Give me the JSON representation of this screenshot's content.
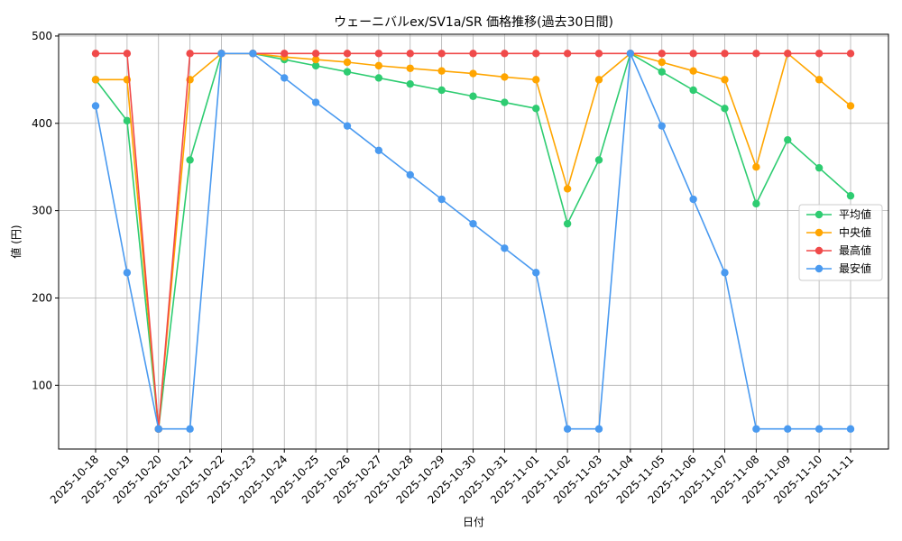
{
  "chart_data": {
    "type": "line",
    "title": "ウェーニバルex/SV1a/SR 価格推移(過去30日間)",
    "xlabel": "日付",
    "ylabel": "値 (円)",
    "categories": [
      "2025-10-18",
      "2025-10-19",
      "2025-10-20",
      "2025-10-21",
      "2025-10-22",
      "2025-10-23",
      "2025-10-24",
      "2025-10-25",
      "2025-10-26",
      "2025-10-27",
      "2025-10-28",
      "2025-10-29",
      "2025-10-30",
      "2025-10-31",
      "2025-11-01",
      "2025-11-02",
      "2025-11-03",
      "2025-11-04",
      "2025-11-05",
      "2025-11-06",
      "2025-11-07",
      "2025-11-08",
      "2025-11-09",
      "2025-11-10",
      "2025-11-11"
    ],
    "ylim": [
      27,
      502
    ],
    "yticks": [
      100,
      200,
      300,
      400,
      500
    ],
    "grid": true,
    "legend_position": "center-right",
    "series": [
      {
        "name": "平均値",
        "color": "#2ecc71",
        "values": [
          450,
          403,
          50,
          358,
          480,
          480,
          473,
          466,
          459,
          452,
          445,
          438,
          431,
          424,
          417,
          285,
          358,
          480,
          459,
          438,
          417,
          308,
          381,
          349,
          317
        ]
      },
      {
        "name": "中央値",
        "color": "#ffa500",
        "values": [
          450,
          450,
          50,
          450,
          480,
          480,
          476,
          473,
          470,
          466,
          463,
          460,
          457,
          453,
          450,
          325,
          450,
          480,
          470,
          460,
          450,
          350,
          480,
          450,
          420
        ]
      },
      {
        "name": "最高値",
        "color": "#f04a4a",
        "values": [
          480,
          480,
          50,
          480,
          480,
          480,
          480,
          480,
          480,
          480,
          480,
          480,
          480,
          480,
          480,
          480,
          480,
          480,
          480,
          480,
          480,
          480,
          480,
          480,
          480
        ]
      },
      {
        "name": "最安値",
        "color": "#4a9af0",
        "values": [
          420,
          229,
          50,
          50,
          480,
          480,
          452,
          424,
          397,
          369,
          341,
          313,
          285,
          257,
          229,
          50,
          50,
          480,
          397,
          313,
          229,
          50,
          50,
          50,
          50
        ]
      }
    ]
  }
}
